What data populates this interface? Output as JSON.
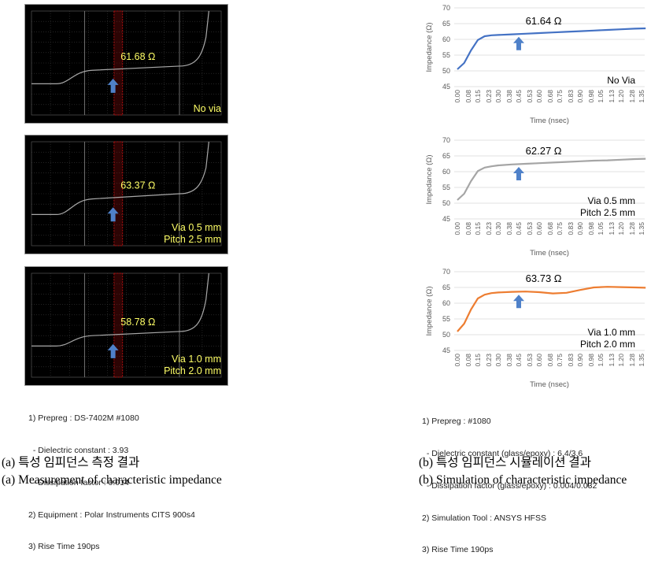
{
  "measurement": {
    "charts": [
      {
        "value_label": "61.68 Ω",
        "condition": [
          "No via"
        ],
        "start": 0.3,
        "plateau": 0.44,
        "end": 0.47
      },
      {
        "value_label": "63.37 Ω",
        "condition": [
          "Via 0.5 mm",
          "Pitch 2.5 mm"
        ],
        "start": 0.3,
        "plateau": 0.46,
        "end": 0.5
      },
      {
        "value_label": "58.78 Ω",
        "condition": [
          "Via 1.0 mm",
          "Pitch 2.0 mm"
        ],
        "start": 0.3,
        "plateau": 0.41,
        "end": 0.44
      }
    ],
    "notes": [
      "1) Prepreg : DS-7402M #1080",
      "  - Dielectric constant : 3.93",
      "  - Dissipation factor : 0.014",
      "2) Equipment : Polar Instruments CITS 900s4",
      "3) Rise Time 190ps"
    ],
    "caption_kr": "(a) 특성 임피던스 측정 결과",
    "caption_en": "(a) Measurement of characteristic impedance"
  },
  "simulation": {
    "chart_data": [
      {
        "type": "line",
        "value_label": "61.64 Ω",
        "condition": [
          "No Via"
        ],
        "color": "#4472C4",
        "ylabel": "Impedance (Ω)",
        "xlabel": "Time (nsec)",
        "ylim": [
          45,
          70
        ],
        "yticks": [
          "45",
          "50",
          "55",
          "60",
          "65",
          "70"
        ],
        "xticks": [
          "0.00",
          "0.08",
          "0.15",
          "0.23",
          "0.30",
          "0.38",
          "0.45",
          "0.53",
          "0.60",
          "0.68",
          "0.75",
          "0.83",
          "0.90",
          "0.98",
          "1.05",
          "1.13",
          "1.20",
          "1.28",
          "1.35"
        ],
        "x": [
          0.0,
          0.05,
          0.1,
          0.15,
          0.2,
          0.25,
          0.3,
          0.4,
          0.5,
          0.6,
          0.7,
          0.8,
          0.9,
          1.0,
          1.1,
          1.2,
          1.3,
          1.4
        ],
        "y": [
          50.5,
          52.5,
          56.5,
          59.8,
          61.0,
          61.3,
          61.4,
          61.6,
          61.8,
          62.0,
          62.2,
          62.4,
          62.6,
          62.8,
          63.0,
          63.2,
          63.4,
          63.5
        ]
      },
      {
        "type": "line",
        "value_label": "62.27 Ω",
        "condition": [
          "Via 0.5 mm",
          "Pitch 2.5 mm"
        ],
        "color": "#A5A5A5",
        "ylabel": "Impedance (Ω)",
        "xlabel": "Time (nsec)",
        "ylim": [
          45,
          70
        ],
        "yticks": [
          "45",
          "50",
          "55",
          "60",
          "65",
          "70"
        ],
        "xticks": [
          "0.00",
          "0.08",
          "0.15",
          "0.23",
          "0.30",
          "0.38",
          "0.45",
          "0.53",
          "0.60",
          "0.68",
          "0.75",
          "0.83",
          "0.90",
          "0.98",
          "1.05",
          "1.13",
          "1.20",
          "1.28",
          "1.35"
        ],
        "x": [
          0.0,
          0.05,
          0.1,
          0.15,
          0.2,
          0.25,
          0.3,
          0.4,
          0.5,
          0.6,
          0.7,
          0.8,
          0.9,
          1.0,
          1.1,
          1.2,
          1.3,
          1.4
        ],
        "y": [
          51.0,
          53.0,
          57.0,
          60.2,
          61.3,
          61.7,
          62.0,
          62.3,
          62.5,
          62.7,
          62.9,
          63.1,
          63.3,
          63.5,
          63.6,
          63.8,
          64.0,
          64.1
        ]
      },
      {
        "type": "line",
        "value_label": "63.73 Ω",
        "condition": [
          "Via 1.0 mm",
          "Pitch 2.0 mm"
        ],
        "color": "#ED7D31",
        "ylabel": "Impedance (Ω)",
        "xlabel": "Time (nsec)",
        "ylim": [
          45,
          70
        ],
        "yticks": [
          "45",
          "50",
          "55",
          "60",
          "65",
          "70"
        ],
        "xticks": [
          "0.00",
          "0.08",
          "0.15",
          "0.23",
          "0.30",
          "0.38",
          "0.45",
          "0.53",
          "0.60",
          "0.68",
          "0.75",
          "0.83",
          "0.90",
          "0.98",
          "1.05",
          "1.13",
          "1.20",
          "1.28",
          "1.35"
        ],
        "x": [
          0.0,
          0.05,
          0.1,
          0.15,
          0.2,
          0.25,
          0.3,
          0.4,
          0.5,
          0.6,
          0.7,
          0.8,
          0.9,
          1.0,
          1.1,
          1.2,
          1.3,
          1.4
        ],
        "y": [
          51.0,
          53.5,
          58.0,
          61.5,
          62.7,
          63.2,
          63.4,
          63.6,
          63.7,
          63.5,
          63.1,
          63.3,
          64.2,
          65.0,
          65.2,
          65.1,
          65.0,
          64.9
        ]
      }
    ],
    "notes": [
      "1) Prepreg : #1080",
      "  - Dielectric constant (glass/epoxy) : 6.4/3.6",
      "  - Dissipation factor (glass/epoxy) : 0.004/0.032",
      "2) Simulation Tool : ANSYS HFSS",
      "3) Rise Time 190ps"
    ],
    "caption_kr": "(b) 특성 임피던스 시뮬레이션 결과",
    "caption_en": "(b) Simulation of characteristic impedance"
  },
  "colors": {
    "scope_bg": "#000000",
    "scope_trace": "#a8a8a8",
    "label_yellow": "#ffff66",
    "arrow_blue": "#4f81c9",
    "marker_red": "#b01010"
  }
}
